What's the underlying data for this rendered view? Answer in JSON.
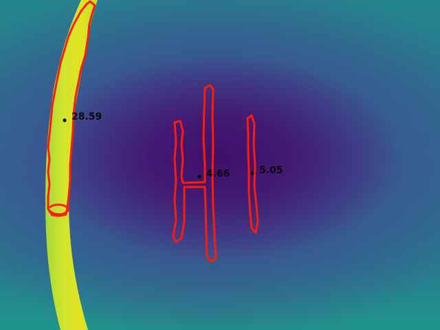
{
  "colors": {
    "contour": "#ff1a0a",
    "hot_band": "#d6e52a",
    "hot_band_edge": "#a7d83c",
    "marker": "#0a0a0a"
  },
  "measurements": [
    {
      "id": "region-1",
      "value": "28.59"
    },
    {
      "id": "region-2",
      "value": "4.66"
    },
    {
      "id": "region-3",
      "value": "5.05"
    }
  ]
}
